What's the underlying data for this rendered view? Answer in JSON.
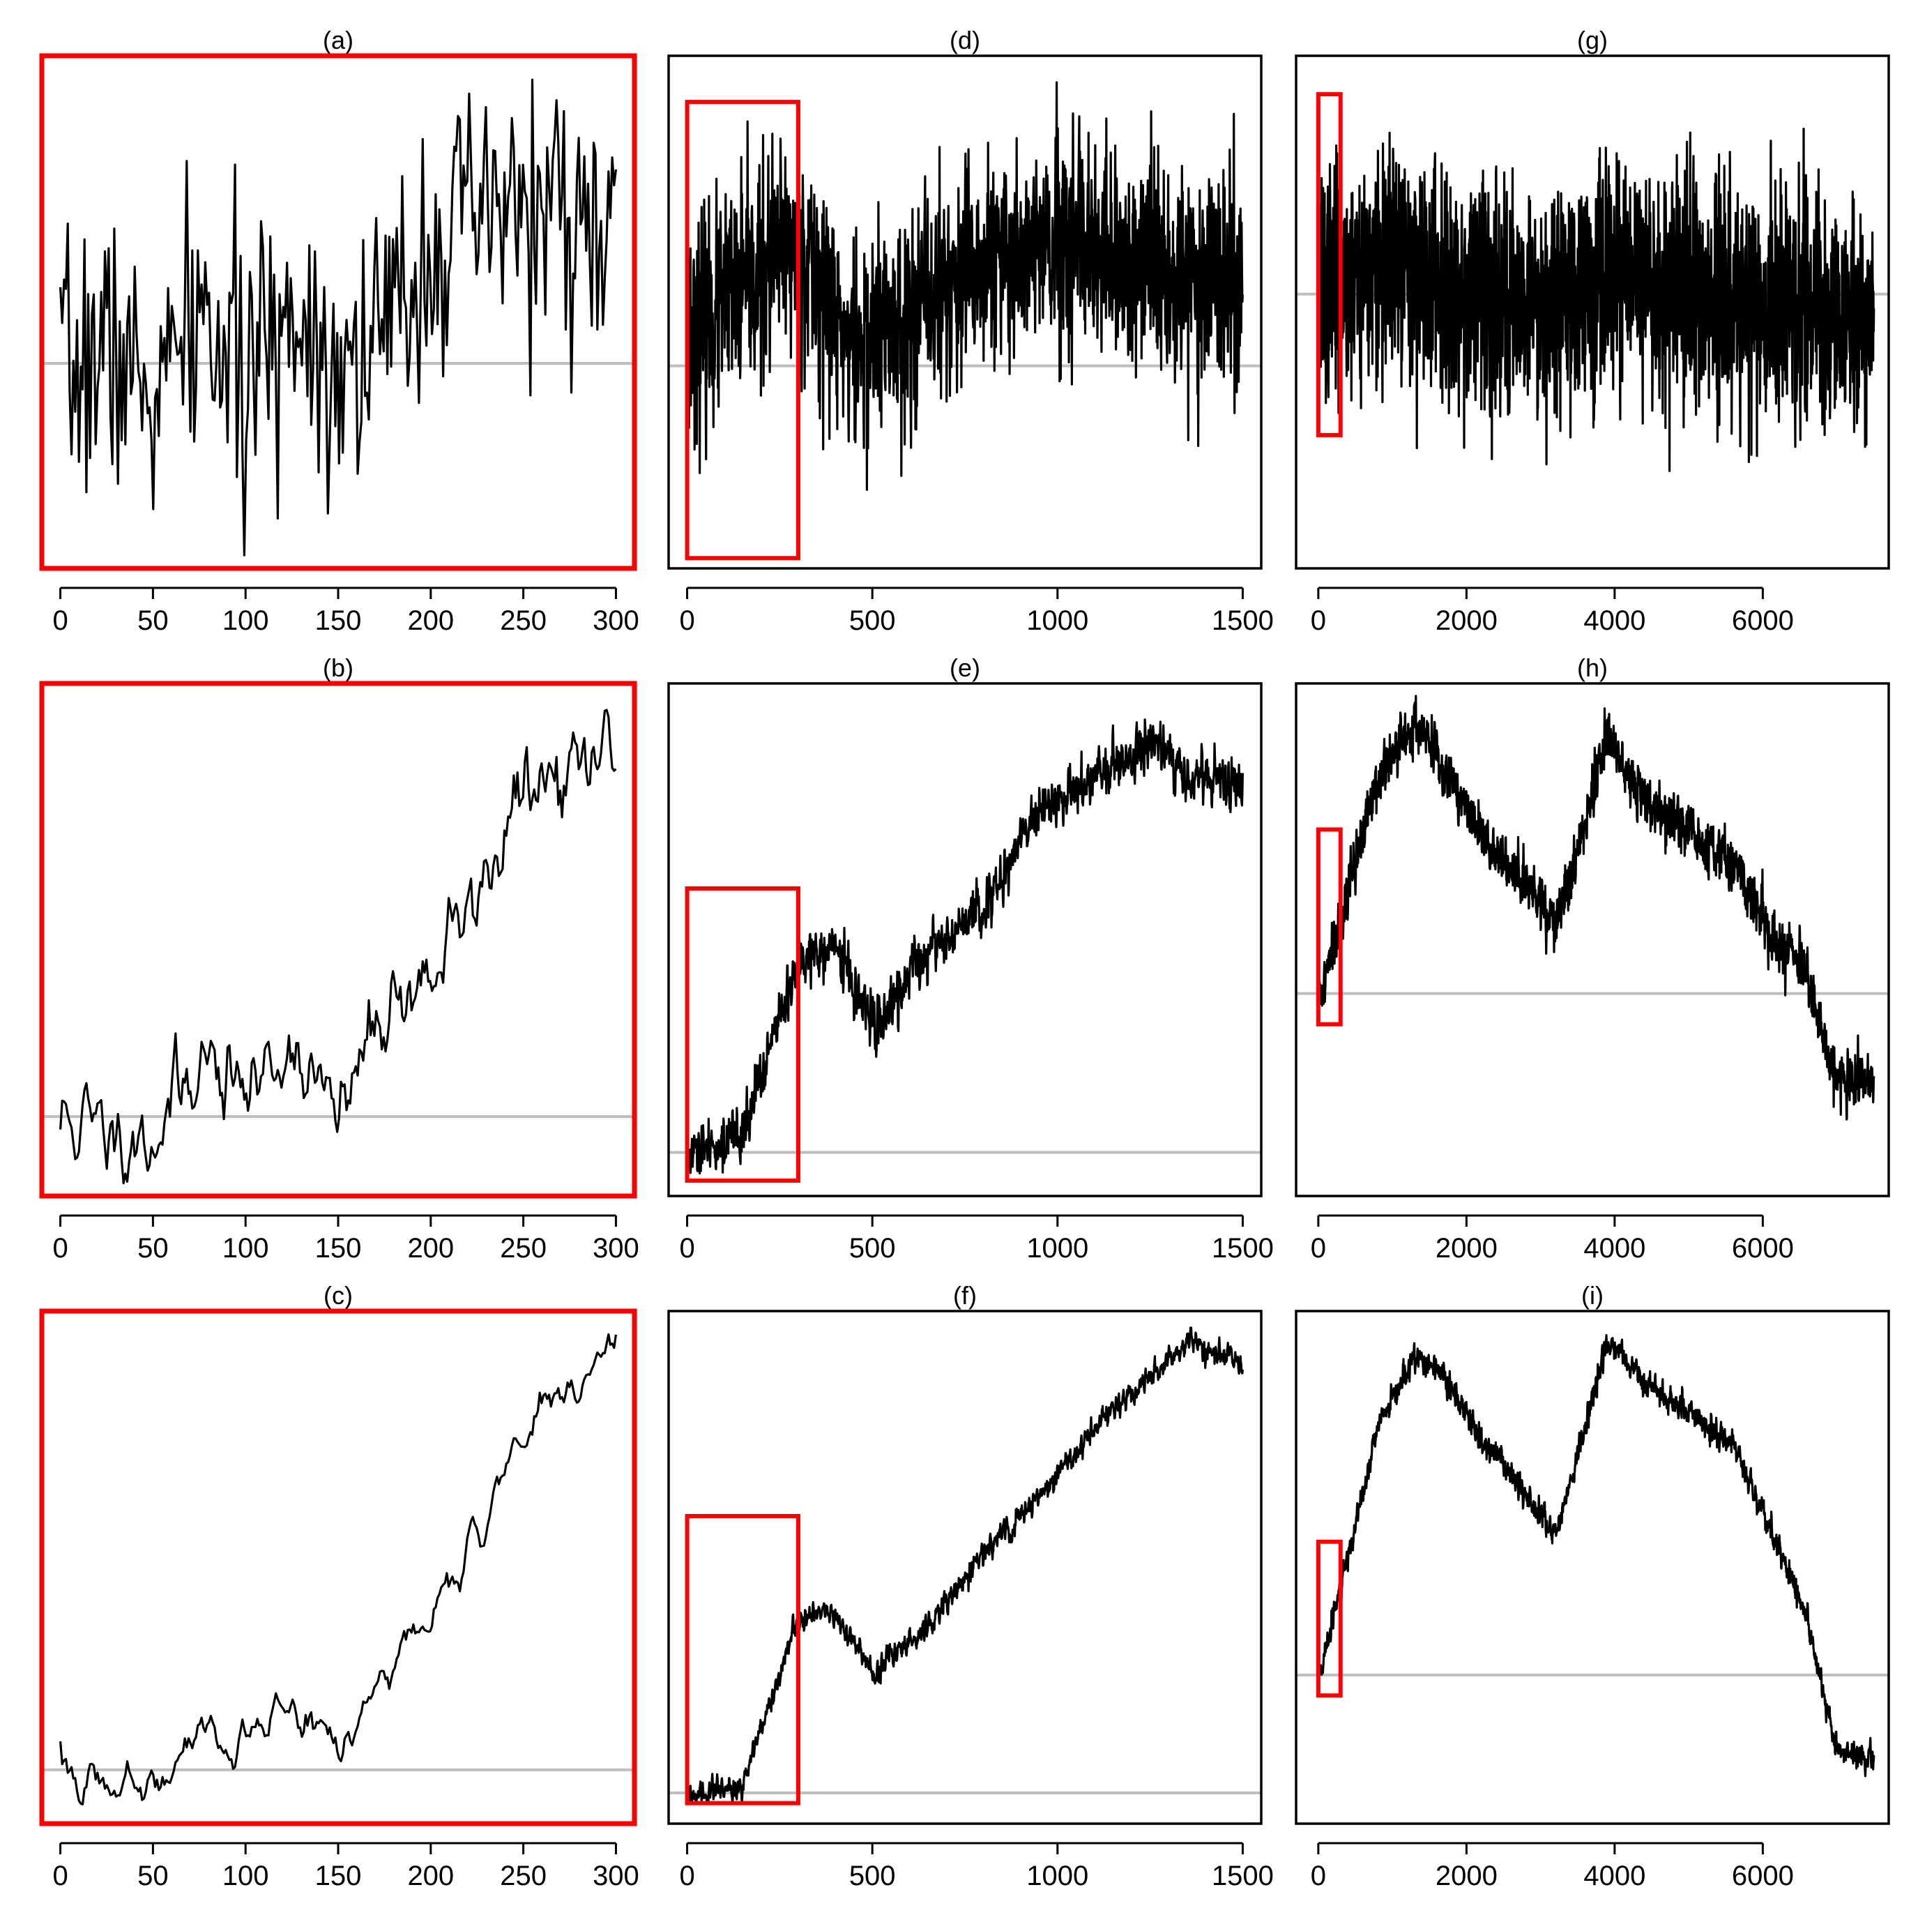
{
  "colors": {
    "series": "#000000",
    "baseline": "#bdbdbd",
    "highlight": "#ff0000",
    "frame": "#000000",
    "background": "#ffffff"
  },
  "chart_data": [
    {
      "title": "(a)",
      "type": "line",
      "xlim": [
        -10,
        310
      ],
      "ylim": [
        -1,
        1
      ],
      "xticks": [
        0,
        50,
        100,
        150,
        200,
        250,
        300
      ],
      "baseline": -0.2,
      "highlight": "frame",
      "smooth": 1,
      "amplitude": 0.62,
      "seed": 7,
      "n": 300,
      "x_max": 300,
      "series": [
        {
          "x": [
            0,
            25,
            50,
            75,
            100,
            125,
            150,
            175,
            200,
            225,
            250,
            275,
            300
          ],
          "y": [
            -0.28,
            -0.12,
            -0.35,
            -0.02,
            -0.3,
            0.02,
            -0.18,
            -0.1,
            0.28,
            0.34,
            0.42,
            0.38,
            0.22
          ]
        }
      ]
    },
    {
      "title": "(b)",
      "type": "line",
      "xlim": [
        -10,
        310
      ],
      "ylim": [
        -1,
        1
      ],
      "xticks": [
        0,
        50,
        100,
        150,
        200,
        250,
        300
      ],
      "baseline": -0.69,
      "highlight": "frame",
      "smooth": 3,
      "amplitude": 0.2,
      "seed": 11,
      "n": 300,
      "x_max": 300,
      "series": [
        {
          "x": [
            0,
            25,
            50,
            75,
            100,
            125,
            150,
            175,
            200,
            225,
            250,
            275,
            300
          ],
          "y": [
            -0.7,
            -0.74,
            -0.78,
            -0.45,
            -0.6,
            -0.4,
            -0.7,
            -0.25,
            -0.15,
            0.18,
            0.58,
            0.62,
            0.78
          ]
        }
      ]
    },
    {
      "title": "(c)",
      "type": "line",
      "xlim": [
        -10,
        310
      ],
      "ylim": [
        -1,
        1
      ],
      "xticks": [
        0,
        50,
        100,
        150,
        200,
        250,
        300
      ],
      "baseline": -0.79,
      "highlight": "frame",
      "smooth": 4,
      "amplitude": 0.1,
      "seed": 19,
      "n": 300,
      "x_max": 300,
      "series": [
        {
          "x": [
            0,
            25,
            50,
            75,
            100,
            125,
            150,
            175,
            200,
            225,
            250,
            275,
            300
          ],
          "y": [
            -0.82,
            -0.83,
            -0.84,
            -0.62,
            -0.72,
            -0.55,
            -0.7,
            -0.42,
            -0.2,
            0.1,
            0.55,
            0.68,
            0.92
          ]
        }
      ]
    },
    {
      "title": "(d)",
      "type": "line",
      "xlim": [
        -50,
        1550
      ],
      "ylim": [
        -1,
        1
      ],
      "xticks": [
        0,
        500,
        1000,
        1500
      ],
      "baseline": -0.21,
      "highlight": {
        "x0": 0,
        "x1": 300,
        "y0": -0.96,
        "y1": 0.82
      },
      "smooth": 1,
      "amplitude": 0.5,
      "seed": 23,
      "n": 1500,
      "x_max": 1500,
      "series": [
        {
          "x": [
            0,
            150,
            300,
            450,
            600,
            750,
            900,
            1050,
            1200,
            1350,
            1500
          ],
          "y": [
            -0.1,
            0.08,
            0.28,
            -0.15,
            0.0,
            0.12,
            0.25,
            0.22,
            0.18,
            0.16,
            0.08
          ]
        }
      ]
    },
    {
      "title": "(e)",
      "type": "line",
      "xlim": [
        -50,
        1550
      ],
      "ylim": [
        -1,
        1
      ],
      "xticks": [
        0,
        500,
        1000,
        1500
      ],
      "baseline": -0.83,
      "highlight": {
        "x0": 0,
        "x1": 300,
        "y0": -0.94,
        "y1": 0.2
      },
      "smooth": 2,
      "amplitude": 0.12,
      "seed": 29,
      "n": 1500,
      "x_max": 1500,
      "series": [
        {
          "x": [
            0,
            150,
            300,
            400,
            500,
            650,
            800,
            950,
            1100,
            1250,
            1350,
            1500
          ],
          "y": [
            -0.86,
            -0.75,
            -0.1,
            -0.02,
            -0.35,
            -0.05,
            0.12,
            0.52,
            0.62,
            0.78,
            0.65,
            0.6
          ]
        }
      ]
    },
    {
      "title": "(f)",
      "type": "line",
      "xlim": [
        -50,
        1550
      ],
      "ylim": [
        -1,
        1
      ],
      "xticks": [
        0,
        500,
        1000,
        1500
      ],
      "baseline": -0.88,
      "highlight": {
        "x0": 0,
        "x1": 300,
        "y0": -0.92,
        "y1": 0.2
      },
      "smooth": 3,
      "amplitude": 0.06,
      "seed": 31,
      "n": 1500,
      "x_max": 1500,
      "series": [
        {
          "x": [
            0,
            150,
            300,
            400,
            500,
            650,
            800,
            950,
            1100,
            1250,
            1350,
            1500
          ],
          "y": [
            -0.9,
            -0.85,
            -0.2,
            -0.18,
            -0.42,
            -0.22,
            0.05,
            0.28,
            0.55,
            0.75,
            0.88,
            0.8
          ]
        }
      ]
    },
    {
      "title": "(g)",
      "type": "line",
      "xlim": [
        -300,
        7700
      ],
      "ylim": [
        -1,
        1
      ],
      "xticks": [
        0,
        2000,
        4000,
        6000
      ],
      "baseline": 0.07,
      "highlight": {
        "x0": 0,
        "x1": 300,
        "y0": -0.48,
        "y1": 0.85
      },
      "smooth": 1,
      "amplitude": 0.52,
      "seed": 37,
      "n": 2200,
      "x_max": 7500,
      "series": [
        {
          "x": [
            0,
            1000,
            2000,
            3000,
            4000,
            5000,
            6000,
            7000,
            7500
          ],
          "y": [
            0.1,
            0.18,
            0.08,
            0.04,
            0.12,
            0.08,
            0.02,
            -0.05,
            0.0
          ]
        }
      ]
    },
    {
      "title": "(h)",
      "type": "line",
      "xlim": [
        -300,
        7700
      ],
      "ylim": [
        -1,
        1
      ],
      "xticks": [
        0,
        2000,
        4000,
        6000
      ],
      "baseline": -0.21,
      "highlight": {
        "x0": 0,
        "x1": 300,
        "y0": -0.33,
        "y1": 0.43
      },
      "smooth": 2,
      "amplitude": 0.12,
      "seed": 41,
      "n": 2200,
      "x_max": 7500,
      "series": [
        {
          "x": [
            0,
            400,
            800,
            1300,
            1600,
            2200,
            2800,
            3200,
            3600,
            3900,
            4400,
            5000,
            5600,
            6100,
            6600,
            7000,
            7500
          ],
          "y": [
            -0.25,
            0.2,
            0.62,
            0.85,
            0.72,
            0.4,
            0.22,
            0.05,
            0.45,
            0.8,
            0.55,
            0.42,
            0.3,
            0.02,
            -0.15,
            -0.55,
            -0.55
          ]
        }
      ]
    },
    {
      "title": "(i)",
      "type": "line",
      "xlim": [
        -300,
        7700
      ],
      "ylim": [
        -1,
        1
      ],
      "xticks": [
        0,
        2000,
        4000,
        6000
      ],
      "baseline": -0.42,
      "highlight": {
        "x0": 0,
        "x1": 300,
        "y0": -0.5,
        "y1": 0.1
      },
      "smooth": 3,
      "amplitude": 0.06,
      "seed": 43,
      "n": 2200,
      "x_max": 7500,
      "series": [
        {
          "x": [
            0,
            400,
            800,
            1300,
            1600,
            2200,
            2800,
            3200,
            3600,
            3900,
            4400,
            5000,
            5600,
            6100,
            6600,
            7000,
            7500
          ],
          "y": [
            -0.45,
            0.05,
            0.55,
            0.82,
            0.78,
            0.5,
            0.3,
            0.12,
            0.55,
            0.88,
            0.72,
            0.6,
            0.48,
            0.15,
            -0.2,
            -0.72,
            -0.75
          ]
        }
      ]
    }
  ]
}
